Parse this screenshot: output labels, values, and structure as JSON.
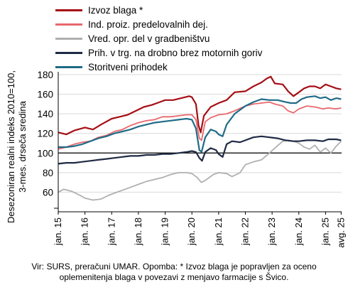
{
  "note": "Vir: SURS, preračuni UMAR. Opomba: * Izvoz blaga je popravljen za oceno oplemenitenja blaga v povezavi z menjavo farmacije s Švico.",
  "chart_data": {
    "type": "line",
    "ylabel": "Desezoniran realni indeks 2010=100, 3-mes. drseča sredina",
    "ylim": [
      40,
      180
    ],
    "yticks": [
      60,
      80,
      100,
      120,
      140,
      160,
      180
    ],
    "reference_line": 100,
    "xlim": [
      2015.0,
      2025.6
    ],
    "xticks": [
      {
        "pos": 2015,
        "label": "jan. 15"
      },
      {
        "pos": 2016,
        "label": "jan. 16"
      },
      {
        "pos": 2017,
        "label": "jan. 17"
      },
      {
        "pos": 2018,
        "label": "jan. 18"
      },
      {
        "pos": 2019,
        "label": "jan. 19"
      },
      {
        "pos": 2020,
        "label": "jan. 20"
      },
      {
        "pos": 2021,
        "label": "jan. 21"
      },
      {
        "pos": 2022,
        "label": "jan. 22"
      },
      {
        "pos": 2023,
        "label": "jan. 23"
      },
      {
        "pos": 2024,
        "label": "jan. 24"
      },
      {
        "pos": 2025,
        "label": "jan. 25"
      },
      {
        "pos": 2025.583,
        "label": "avg. 25"
      }
    ],
    "series": [
      {
        "name": "Izvoz blaga *",
        "color": "#a50f15",
        "width": 2.2,
        "points": [
          [
            2015.0,
            121
          ],
          [
            2015.3,
            119
          ],
          [
            2015.6,
            123
          ],
          [
            2016.0,
            126
          ],
          [
            2016.3,
            124
          ],
          [
            2016.6,
            129
          ],
          [
            2017.0,
            135
          ],
          [
            2017.3,
            137
          ],
          [
            2017.6,
            139
          ],
          [
            2017.9,
            143
          ],
          [
            2018.2,
            147
          ],
          [
            2018.5,
            149
          ],
          [
            2018.8,
            152
          ],
          [
            2019.0,
            154
          ],
          [
            2019.3,
            154
          ],
          [
            2019.6,
            156
          ],
          [
            2019.9,
            158
          ],
          [
            2020.0,
            157
          ],
          [
            2020.15,
            150
          ],
          [
            2020.25,
            128
          ],
          [
            2020.33,
            121
          ],
          [
            2020.45,
            138
          ],
          [
            2020.7,
            147
          ],
          [
            2021.0,
            151
          ],
          [
            2021.3,
            154
          ],
          [
            2021.6,
            162
          ],
          [
            2022.0,
            163
          ],
          [
            2022.3,
            168
          ],
          [
            2022.6,
            172
          ],
          [
            2022.8,
            176
          ],
          [
            2022.95,
            178
          ],
          [
            2023.1,
            171
          ],
          [
            2023.4,
            170
          ],
          [
            2023.6,
            163
          ],
          [
            2023.8,
            158
          ],
          [
            2024.0,
            162
          ],
          [
            2024.2,
            166
          ],
          [
            2024.4,
            168
          ],
          [
            2024.6,
            168
          ],
          [
            2024.8,
            166
          ],
          [
            2025.0,
            170
          ],
          [
            2025.2,
            168
          ],
          [
            2025.4,
            166
          ],
          [
            2025.583,
            165
          ]
        ]
      },
      {
        "name": "Ind. proiz. predelovalnih dej.",
        "color": "#e8686c",
        "width": 1.8,
        "points": [
          [
            2015.0,
            104
          ],
          [
            2015.3,
            106
          ],
          [
            2015.6,
            109
          ],
          [
            2015.9,
            111
          ],
          [
            2016.2,
            112
          ],
          [
            2016.5,
            116
          ],
          [
            2016.8,
            118
          ],
          [
            2017.1,
            122
          ],
          [
            2017.4,
            124
          ],
          [
            2017.7,
            128
          ],
          [
            2018.0,
            131
          ],
          [
            2018.3,
            133
          ],
          [
            2018.6,
            134
          ],
          [
            2018.9,
            137
          ],
          [
            2019.2,
            137
          ],
          [
            2019.5,
            138
          ],
          [
            2019.8,
            139
          ],
          [
            2020.0,
            139
          ],
          [
            2020.15,
            134
          ],
          [
            2020.28,
            115
          ],
          [
            2020.36,
            113
          ],
          [
            2020.5,
            132
          ],
          [
            2020.7,
            136
          ],
          [
            2021.0,
            139
          ],
          [
            2021.3,
            140
          ],
          [
            2021.6,
            143
          ],
          [
            2022.0,
            148
          ],
          [
            2022.3,
            150
          ],
          [
            2022.6,
            151
          ],
          [
            2022.9,
            152
          ],
          [
            2023.1,
            150
          ],
          [
            2023.4,
            148
          ],
          [
            2023.6,
            143
          ],
          [
            2023.8,
            141
          ],
          [
            2024.0,
            145
          ],
          [
            2024.3,
            148
          ],
          [
            2024.6,
            147
          ],
          [
            2024.9,
            145
          ],
          [
            2025.1,
            146
          ],
          [
            2025.4,
            145
          ],
          [
            2025.583,
            146
          ]
        ]
      },
      {
        "name": "Vred. opr. del v gradbeništvu",
        "color": "#b0b0b0",
        "width": 1.8,
        "points": [
          [
            2015.0,
            60
          ],
          [
            2015.2,
            63
          ],
          [
            2015.5,
            61
          ],
          [
            2015.8,
            57
          ],
          [
            2016.0,
            54
          ],
          [
            2016.3,
            52
          ],
          [
            2016.6,
            53
          ],
          [
            2016.9,
            57
          ],
          [
            2017.2,
            60
          ],
          [
            2017.5,
            63
          ],
          [
            2017.8,
            66
          ],
          [
            2018.0,
            68
          ],
          [
            2018.3,
            71
          ],
          [
            2018.6,
            73
          ],
          [
            2018.9,
            75
          ],
          [
            2019.2,
            78
          ],
          [
            2019.5,
            80
          ],
          [
            2019.8,
            80
          ],
          [
            2020.0,
            79
          ],
          [
            2020.2,
            75
          ],
          [
            2020.35,
            70
          ],
          [
            2020.5,
            72
          ],
          [
            2020.8,
            78
          ],
          [
            2021.0,
            80
          ],
          [
            2021.3,
            79
          ],
          [
            2021.5,
            76
          ],
          [
            2021.8,
            80
          ],
          [
            2022.0,
            88
          ],
          [
            2022.3,
            91
          ],
          [
            2022.6,
            93
          ],
          [
            2022.9,
            100
          ],
          [
            2023.1,
            105
          ],
          [
            2023.4,
            112
          ],
          [
            2023.6,
            113
          ],
          [
            2023.8,
            112
          ],
          [
            2024.0,
            110
          ],
          [
            2024.2,
            106
          ],
          [
            2024.4,
            104
          ],
          [
            2024.6,
            108
          ],
          [
            2024.8,
            101
          ],
          [
            2025.0,
            105
          ],
          [
            2025.2,
            100
          ],
          [
            2025.4,
            107
          ],
          [
            2025.583,
            112
          ]
        ]
      },
      {
        "name": "Prih. v trg. na drobno brez motornih goriv",
        "color": "#1f2a44",
        "width": 2.2,
        "points": [
          [
            2015.0,
            89
          ],
          [
            2015.3,
            90
          ],
          [
            2015.6,
            90
          ],
          [
            2015.9,
            91
          ],
          [
            2016.2,
            92
          ],
          [
            2016.5,
            93
          ],
          [
            2016.8,
            94
          ],
          [
            2017.1,
            95
          ],
          [
            2017.4,
            96
          ],
          [
            2017.7,
            97
          ],
          [
            2018.0,
            97
          ],
          [
            2018.3,
            98
          ],
          [
            2018.6,
            98
          ],
          [
            2018.9,
            99
          ],
          [
            2019.2,
            99
          ],
          [
            2019.5,
            100
          ],
          [
            2019.8,
            101
          ],
          [
            2020.0,
            102
          ],
          [
            2020.15,
            101
          ],
          [
            2020.28,
            95
          ],
          [
            2020.38,
            92
          ],
          [
            2020.5,
            101
          ],
          [
            2020.7,
            105
          ],
          [
            2020.9,
            103
          ],
          [
            2021.0,
            99
          ],
          [
            2021.15,
            96
          ],
          [
            2021.3,
            109
          ],
          [
            2021.5,
            112
          ],
          [
            2021.8,
            111
          ],
          [
            2022.0,
            113
          ],
          [
            2022.3,
            116
          ],
          [
            2022.6,
            117
          ],
          [
            2022.9,
            116
          ],
          [
            2023.2,
            115
          ],
          [
            2023.5,
            113
          ],
          [
            2023.8,
            112
          ],
          [
            2024.0,
            112
          ],
          [
            2024.3,
            113
          ],
          [
            2024.6,
            113
          ],
          [
            2024.9,
            112
          ],
          [
            2025.1,
            114
          ],
          [
            2025.4,
            114
          ],
          [
            2025.583,
            113
          ]
        ]
      },
      {
        "name": "Storitveni prihodek",
        "color": "#1f6b86",
        "width": 2.2,
        "points": [
          [
            2015.0,
            106
          ],
          [
            2015.3,
            106
          ],
          [
            2015.6,
            107
          ],
          [
            2015.9,
            109
          ],
          [
            2016.2,
            112
          ],
          [
            2016.5,
            115
          ],
          [
            2016.8,
            117
          ],
          [
            2017.1,
            120
          ],
          [
            2017.4,
            122
          ],
          [
            2017.7,
            124
          ],
          [
            2018.0,
            127
          ],
          [
            2018.3,
            129
          ],
          [
            2018.6,
            131
          ],
          [
            2018.9,
            132
          ],
          [
            2019.2,
            133
          ],
          [
            2019.5,
            134
          ],
          [
            2019.8,
            135
          ],
          [
            2020.0,
            134
          ],
          [
            2020.15,
            125
          ],
          [
            2020.28,
            103
          ],
          [
            2020.36,
            101
          ],
          [
            2020.5,
            116
          ],
          [
            2020.7,
            124
          ],
          [
            2020.9,
            122
          ],
          [
            2021.0,
            119
          ],
          [
            2021.15,
            117
          ],
          [
            2021.3,
            129
          ],
          [
            2021.6,
            140
          ],
          [
            2022.0,
            148
          ],
          [
            2022.3,
            152
          ],
          [
            2022.6,
            155
          ],
          [
            2022.9,
            154
          ],
          [
            2023.2,
            154
          ],
          [
            2023.5,
            152
          ],
          [
            2023.7,
            151
          ],
          [
            2023.9,
            151
          ],
          [
            2024.1,
            155
          ],
          [
            2024.3,
            157
          ],
          [
            2024.6,
            158
          ],
          [
            2024.8,
            156
          ],
          [
            2025.0,
            157
          ],
          [
            2025.2,
            154
          ],
          [
            2025.4,
            156
          ],
          [
            2025.583,
            155
          ]
        ]
      }
    ]
  }
}
